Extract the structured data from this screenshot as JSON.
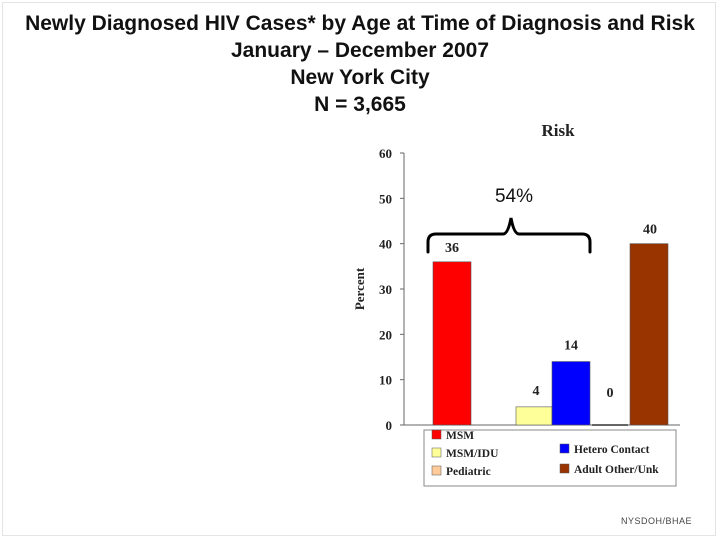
{
  "slide": {
    "title_lines": [
      "Newly Diagnosed HIV Cases* by Age at Time of Diagnosis and Risk",
      "January – December 2007",
      "New York City",
      "N = 3,665"
    ],
    "footer": "NYSDOH/BHAE"
  },
  "chart_data": {
    "type": "bar",
    "title": "Risk",
    "xlabel": "",
    "ylabel": "Percent",
    "ylim": [
      0,
      60
    ],
    "yticks": [
      0,
      10,
      20,
      30,
      40,
      50,
      60
    ],
    "grid": false,
    "categories": [
      "MSM",
      "MSM/IDU",
      "Hetero Contact",
      "Pediatric",
      "Adult Other/Unk"
    ],
    "values": [
      36,
      4,
      14,
      0,
      40
    ],
    "value_labels": [
      "36",
      "4",
      "14",
      "0",
      "40"
    ],
    "colors": [
      "#ff0000",
      "#ffff99",
      "#0000ff",
      "#ffcc99",
      "#993300"
    ],
    "legend": [
      {
        "label": "MSM",
        "color": "#ff0000"
      },
      {
        "label": "Hetero Contact",
        "color": "#0000ff"
      },
      {
        "label": "MSM/IDU",
        "color": "#ffff99"
      },
      {
        "label": "Adult Other/Unk",
        "color": "#993300"
      },
      {
        "label": "Pediatric",
        "color": "#ffcc99"
      }
    ],
    "legend_placement": "bottom",
    "annotation": {
      "text": "54%",
      "spans": [
        "MSM",
        "Hetero Contact"
      ]
    }
  }
}
